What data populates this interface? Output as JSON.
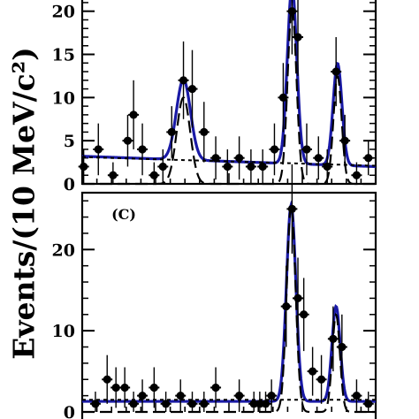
{
  "y_axis_label": "Events/(10 MeV/c²)",
  "chart_data": [
    {
      "type": "scatter",
      "panel": "top",
      "panel_label": "",
      "ylim": [
        0,
        20
      ],
      "ticks": [
        0,
        5,
        10,
        15,
        20
      ],
      "tick_labels": [
        "0",
        "5",
        "10",
        "15",
        "20"
      ],
      "xlim": [
        0,
        100
      ],
      "points": [
        {
          "x": 0.5,
          "y": 2,
          "err": 2
        },
        {
          "x": 5.5,
          "y": 4,
          "err": 3
        },
        {
          "x": 10.5,
          "y": 1,
          "err": 1.5
        },
        {
          "x": 15.5,
          "y": 5,
          "err": 3
        },
        {
          "x": 17.5,
          "y": 8,
          "err": 4
        },
        {
          "x": 20.5,
          "y": 4,
          "err": 3
        },
        {
          "x": 24.5,
          "y": 1,
          "err": 1.5
        },
        {
          "x": 27.5,
          "y": 2,
          "err": 2
        },
        {
          "x": 30.5,
          "y": 6,
          "err": 3
        },
        {
          "x": 34.5,
          "y": 12,
          "err": 4.5
        },
        {
          "x": 37.5,
          "y": 11,
          "err": 4.5
        },
        {
          "x": 41.5,
          "y": 6,
          "err": 3.5
        },
        {
          "x": 45.5,
          "y": 3,
          "err": 2.5
        },
        {
          "x": 49.5,
          "y": 2,
          "err": 2
        },
        {
          "x": 53.5,
          "y": 3,
          "err": 2.5
        },
        {
          "x": 57.5,
          "y": 2,
          "err": 2
        },
        {
          "x": 61.5,
          "y": 2,
          "err": 2
        },
        {
          "x": 65.5,
          "y": 4,
          "err": 3
        },
        {
          "x": 68.5,
          "y": 10,
          "err": 4
        },
        {
          "x": 71.5,
          "y": 20,
          "err": 5
        },
        {
          "x": 73.5,
          "y": 17,
          "err": 4.5
        },
        {
          "x": 76.5,
          "y": 4,
          "err": 3
        },
        {
          "x": 80.5,
          "y": 3,
          "err": 2.5
        },
        {
          "x": 83.5,
          "y": 2,
          "err": 2
        },
        {
          "x": 86.5,
          "y": 13,
          "err": 4
        },
        {
          "x": 89.5,
          "y": 5,
          "err": 3
        },
        {
          "x": 93.5,
          "y": 1,
          "err": 1.5
        },
        {
          "x": 97.5,
          "y": 3,
          "err": 2
        }
      ],
      "curves": [
        {
          "style": "total-fit",
          "color": "#1a1aa6",
          "baseline": [
            3.2,
            0,
            2.0,
            100
          ],
          "peaks": [
            {
              "mu": 34.5,
              "sigma": 2.4,
              "amp": 9.3
            },
            {
              "mu": 71.5,
              "sigma": 1.6,
              "amp": 20.5
            },
            {
              "mu": 87.0,
              "sigma": 1.5,
              "amp": 11.8
            }
          ]
        },
        {
          "style": "signal-dash",
          "color": "#000000",
          "baseline": [
            0,
            0,
            0,
            100
          ],
          "peaks": [
            {
              "mu": 34.5,
              "sigma": 2.3,
              "amp": 10.0
            },
            {
              "mu": 71.5,
              "sigma": 1.5,
              "amp": 20.5
            },
            {
              "mu": 87.0,
              "sigma": 1.4,
              "amp": 12.5
            }
          ]
        },
        {
          "style": "background-dot",
          "color": "#000000",
          "baseline": [
            3.1,
            0,
            2.1,
            100
          ],
          "peaks": []
        }
      ]
    },
    {
      "type": "scatter",
      "panel": "bottom",
      "panel_label": "(C)",
      "ylim": [
        0,
        27
      ],
      "ticks": [
        0,
        10,
        20
      ],
      "tick_labels": [
        "0",
        "10",
        "20"
      ],
      "xlim": [
        0,
        100
      ],
      "points": [
        {
          "x": 4.5,
          "y": 1,
          "err": 1.5
        },
        {
          "x": 8.5,
          "y": 4,
          "err": 3
        },
        {
          "x": 11.5,
          "y": 3,
          "err": 2.5
        },
        {
          "x": 14.5,
          "y": 3,
          "err": 2.5
        },
        {
          "x": 17.5,
          "y": 1,
          "err": 1.5
        },
        {
          "x": 20.5,
          "y": 2,
          "err": 2
        },
        {
          "x": 24.5,
          "y": 3,
          "err": 2.5
        },
        {
          "x": 28.5,
          "y": 1,
          "err": 1.5
        },
        {
          "x": 33.5,
          "y": 2,
          "err": 2
        },
        {
          "x": 37.5,
          "y": 1,
          "err": 1.5
        },
        {
          "x": 41.5,
          "y": 1,
          "err": 1.5
        },
        {
          "x": 45.5,
          "y": 3,
          "err": 2.5
        },
        {
          "x": 53.5,
          "y": 2,
          "err": 2
        },
        {
          "x": 58.5,
          "y": 1,
          "err": 1.5
        },
        {
          "x": 60.5,
          "y": 1,
          "err": 1.5
        },
        {
          "x": 62.5,
          "y": 1,
          "err": 1.5
        },
        {
          "x": 64.5,
          "y": 2,
          "err": 2
        },
        {
          "x": 69.5,
          "y": 13,
          "err": 5
        },
        {
          "x": 71.5,
          "y": 25,
          "err": 5.5
        },
        {
          "x": 73.5,
          "y": 14,
          "err": 5
        },
        {
          "x": 75.5,
          "y": 12,
          "err": 4.5
        },
        {
          "x": 78.5,
          "y": 5,
          "err": 3
        },
        {
          "x": 81.5,
          "y": 4,
          "err": 3
        },
        {
          "x": 85.5,
          "y": 9,
          "err": 4
        },
        {
          "x": 88.5,
          "y": 8,
          "err": 4
        },
        {
          "x": 93.5,
          "y": 2,
          "err": 2
        },
        {
          "x": 97.5,
          "y": 1,
          "err": 1.5
        }
      ],
      "curves": [
        {
          "style": "total-fit",
          "color": "#1a1aa6",
          "baseline": [
            1.3,
            0,
            1.3,
            100
          ],
          "peaks": [
            {
              "mu": 71.2,
              "sigma": 1.6,
              "amp": 24.2
            },
            {
              "mu": 86.5,
              "sigma": 1.4,
              "amp": 11.7
            }
          ]
        },
        {
          "style": "signal-dash",
          "color": "#000000",
          "baseline": [
            0,
            0,
            0,
            100
          ],
          "peaks": [
            {
              "mu": 71.2,
              "sigma": 1.5,
              "amp": 25.5
            },
            {
              "mu": 86.5,
              "sigma": 1.3,
              "amp": 12.0
            }
          ]
        },
        {
          "style": "background-dot",
          "color": "#000000",
          "baseline": [
            1.5,
            0,
            1.5,
            100
          ],
          "peaks": []
        }
      ]
    }
  ]
}
